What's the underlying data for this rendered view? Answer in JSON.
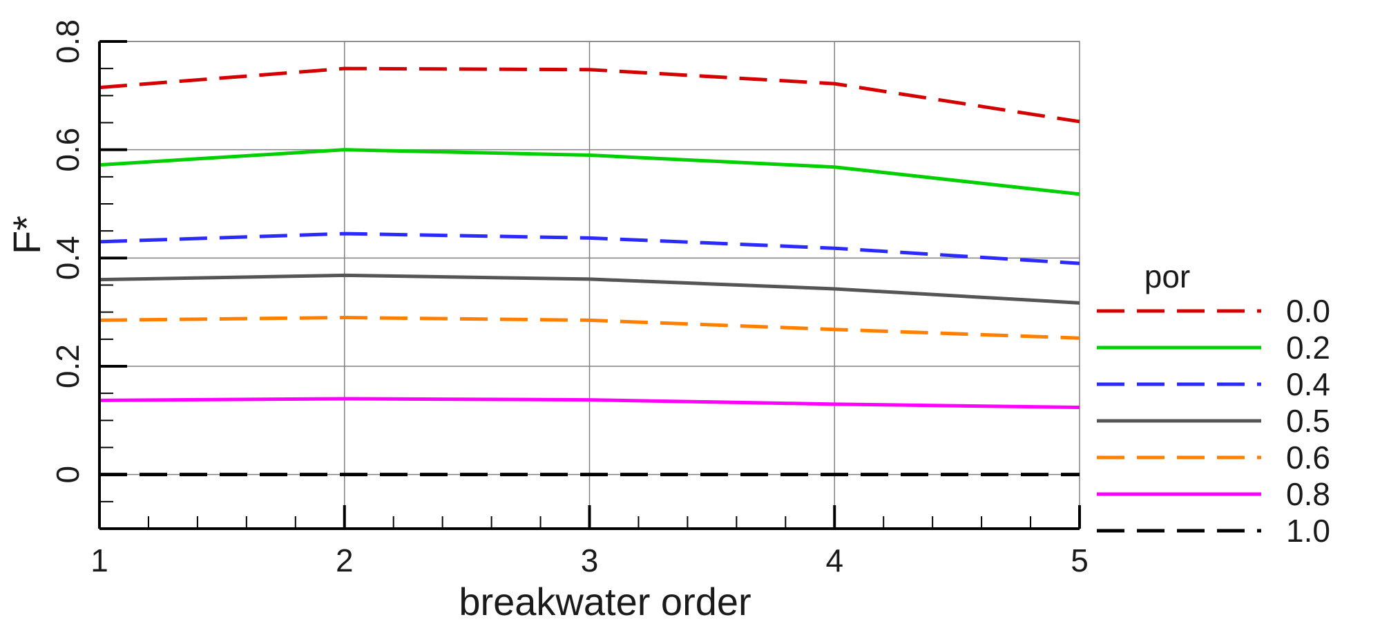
{
  "chart_data": {
    "type": "line",
    "xlabel": "breakwater order",
    "ylabel": "F*",
    "xlim": [
      1,
      5
    ],
    "ylim": [
      -0.1,
      0.8
    ],
    "xticks": [
      "1",
      "2",
      "3",
      "4",
      "5"
    ],
    "yticks": [
      "0",
      "0.2",
      "0.4",
      "0.6",
      "0.8"
    ],
    "grid": true,
    "legend": {
      "title": "por",
      "placement": "right"
    },
    "x": [
      1,
      2,
      3,
      4,
      5
    ],
    "series": [
      {
        "name": "0.0",
        "values": [
          0.715,
          0.75,
          0.748,
          0.722,
          0.652
        ],
        "color": "#d40000",
        "dash": true
      },
      {
        "name": "0.2",
        "values": [
          0.572,
          0.6,
          0.59,
          0.568,
          0.518
        ],
        "color": "#00d000",
        "dash": false
      },
      {
        "name": "0.4",
        "values": [
          0.43,
          0.445,
          0.437,
          0.418,
          0.39
        ],
        "color": "#2a2aff",
        "dash": true
      },
      {
        "name": "0.5",
        "values": [
          0.36,
          0.368,
          0.361,
          0.343,
          0.317
        ],
        "color": "#555555",
        "dash": false
      },
      {
        "name": "0.6",
        "values": [
          0.285,
          0.29,
          0.285,
          0.268,
          0.252
        ],
        "color": "#ff8000",
        "dash": true
      },
      {
        "name": "0.8",
        "values": [
          0.137,
          0.14,
          0.138,
          0.13,
          0.124
        ],
        "color": "#ff00ff",
        "dash": false
      },
      {
        "name": "1.0",
        "values": [
          0.0,
          0.0,
          0.0,
          0.0,
          0.0
        ],
        "color": "#000000",
        "dash": true
      }
    ]
  }
}
